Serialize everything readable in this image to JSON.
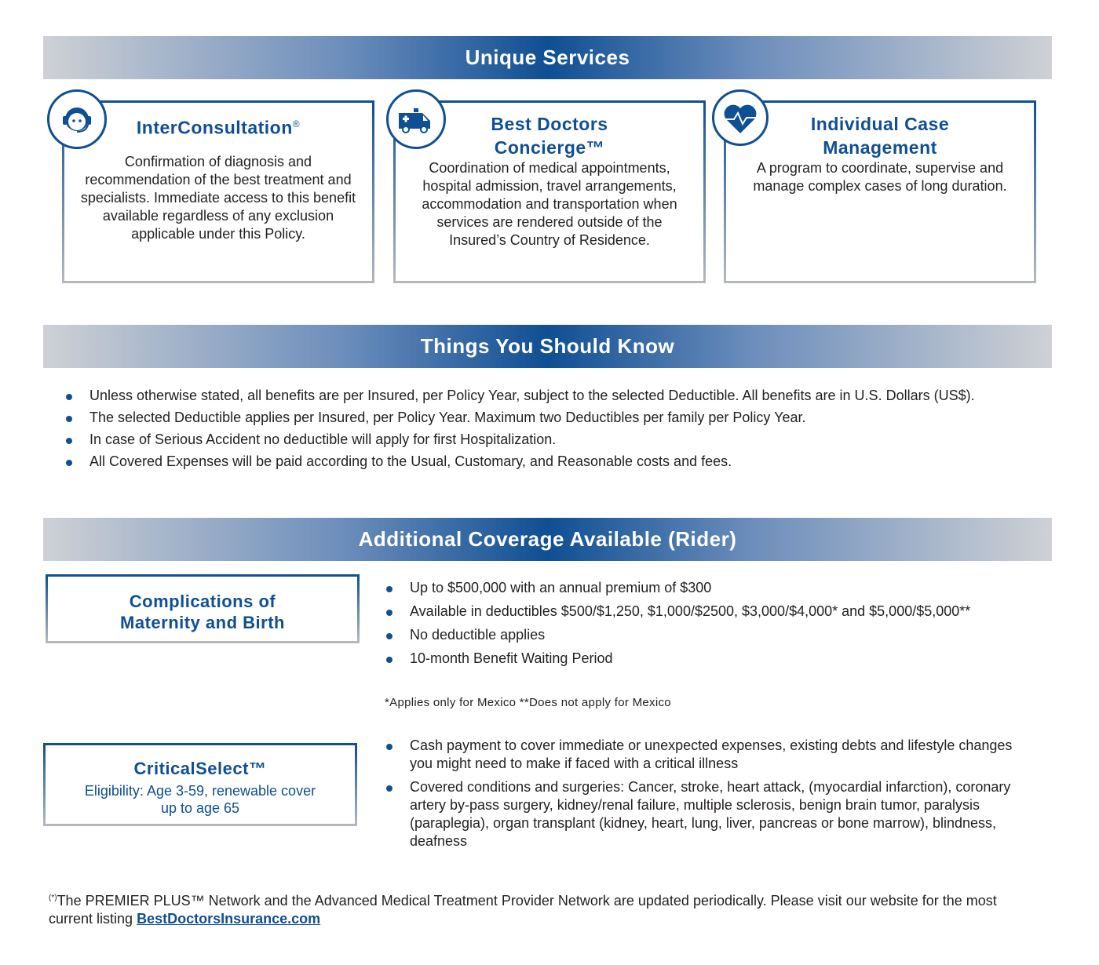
{
  "unique_services": {
    "title": "Unique Services",
    "cards": [
      {
        "icon": "headset-agent-icon",
        "title": "InterConsultation",
        "mark": "®",
        "text": "Confirmation of diagnosis and recommendation of the best treatment and specialists. Immediate access to this benefit available regardless of any exclusion applicable under this Policy."
      },
      {
        "icon": "ambulance-icon",
        "title": "Best Doctors Concierge™",
        "text": "Coordination of medical appointments, hospital admission, travel arrangements, accommodation and transportation when services are rendered outside of the Insured’s Country of Residence."
      },
      {
        "icon": "heart-pulse-icon",
        "title": "Individual Case Management",
        "text": "A program to coordinate, supervise and manage complex cases of long duration."
      }
    ]
  },
  "things": {
    "title": "Things You Should Know",
    "items": [
      "Unless otherwise stated, all benefits are per Insured, per Policy Year, subject to the selected Deductible. All benefits are in U.S. Dollars (US$).",
      "The selected Deductible applies per Insured, per Policy Year. Maximum two Deductibles per family per Policy Year.",
      "In case of Serious Accident no deductible will apply for first Hospitalization.",
      "All Covered Expenses will be paid according to the Usual, Customary, and Reasonable costs and fees."
    ]
  },
  "rider": {
    "title": "Additional Coverage Available (Rider)",
    "maternity": {
      "title": "Complications of Maternity and Birth",
      "items": [
        "Up to $500,000 with an annual premium of $300",
        "Available in deductibles $500/$1,250, $1,000/$2500, $3,000/$4,000* and $5,000/$5,000**",
        "No deductible applies",
        "10-month Benefit Waiting Period"
      ],
      "note": "*Applies only for Mexico **Does not apply for Mexico"
    },
    "critical": {
      "title": "CriticalSelect™",
      "subtitle": "Eligibility: Age 3-59, renewable cover up to age 65",
      "items": [
        "Cash payment to cover immediate or unexpected expenses, existing debts and lifestyle changes you might need to make if faced with a critical illness",
        "Covered conditions and surgeries: Cancer, stroke, heart attack, (myocardial infarction), coronary artery by-pass surgery, kidney/renal failure, multiple sclerosis, benign brain tumor, paralysis (paraplegia), organ transplant (kidney, heart, lung, liver, pancreas or bone marrow), blindness, deafness"
      ]
    }
  },
  "footer": {
    "marker": "(*)",
    "text": "The PREMIER PLUS™ Network and the Advanced Medical Treatment Provider Network are updated periodically. Please visit our website for the most current listing",
    "link": "BestDoctorsInsurance.com"
  },
  "colors": {
    "brand": "#0f4f93",
    "gray": "#cfd1d5"
  }
}
